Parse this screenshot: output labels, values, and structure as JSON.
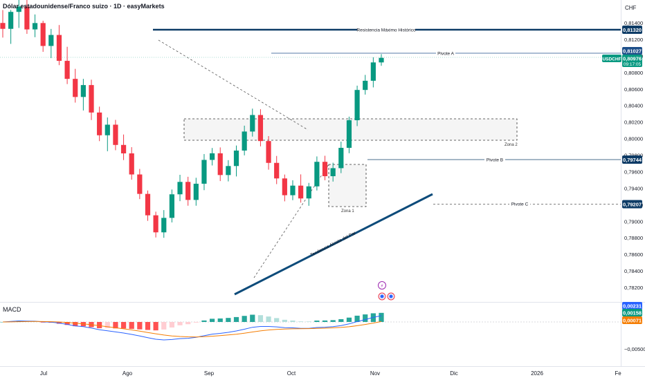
{
  "header": {
    "title": "Dólar estadounidense/Franco suizo · 1D · easyMarkets",
    "currency": "CHF"
  },
  "price_axis": {
    "ticks": [
      "0,81400",
      "0,81200",
      "0,81000",
      "0,80800",
      "0,80600",
      "0,80400",
      "0,80200",
      "0,80000",
      "0,79800",
      "0,79600",
      "0,79400",
      "0,79200",
      "0,79000",
      "0,78800",
      "0,78600",
      "0,78400",
      "0,78200"
    ],
    "tick_values": [
      0.814,
      0.812,
      0.81,
      0.808,
      0.806,
      0.804,
      0.802,
      0.8,
      0.798,
      0.796,
      0.794,
      0.792,
      0.79,
      0.788,
      0.786,
      0.784,
      0.782
    ],
    "badges": {
      "resistencia": {
        "label": "0,81320",
        "value": 0.8132,
        "color": "#0d3b66"
      },
      "pivote_a": {
        "label": "0,81027",
        "value": 0.81027,
        "color": "#1e4f8a"
      },
      "symbol": {
        "name": "USDCHF",
        "price": "0,80976",
        "countdown": "09:17:05",
        "value": 0.80976,
        "color": "#089981"
      },
      "pivote_b": {
        "label": "0,79744",
        "value": 0.79744,
        "color": "#0d3b66"
      },
      "pivote_c": {
        "label": "0,79207",
        "value": 0.79207,
        "color": "#0d3b66"
      }
    }
  },
  "annotations": {
    "resistencia": "Resistencia Máximo Histórico",
    "pivote_a": "Pivote A",
    "pivote_b": "Pivote B",
    "pivote_c": "Pivote C",
    "zona1": "Zona 1",
    "zona2": "Zona 2",
    "tendencia": "Tendencia Alcista del Par"
  },
  "macd": {
    "title": "MACD",
    "ticks": [
      "0,00231",
      "0,00158",
      "0,00071",
      "−0,00500"
    ],
    "tick_colors": [
      "#2962ff",
      "#089981",
      "#f57c00",
      "#131722"
    ],
    "tick_values": [
      0.00231,
      0.00158,
      0.00071,
      -0.005
    ]
  },
  "time_axis": {
    "labels": [
      "Jul",
      "Ago",
      "Sep",
      "Oct",
      "Nov",
      "Dic",
      "2026",
      "Fe"
    ]
  },
  "colors": {
    "up": "#089981",
    "down": "#f23645",
    "trend": "#0d4b7a",
    "macd_line": "#2962ff",
    "signal_line": "#f57c00"
  },
  "chart_data": {
    "type": "candlestick",
    "symbol": "USDCHF",
    "timeframe": "1D",
    "ylim": [
      0.7808,
      0.8148
    ],
    "ohlc": [
      [
        0.81398,
        0.81555,
        0.81221,
        0.81327
      ],
      [
        0.81327,
        0.81555,
        0.81145,
        0.81532
      ],
      [
        0.81532,
        0.81702,
        0.81338,
        0.81597
      ],
      [
        0.81597,
        0.81692,
        0.81266,
        0.8132
      ],
      [
        0.8132,
        0.81501,
        0.81226,
        0.81397
      ],
      [
        0.81397,
        0.81425,
        0.81049,
        0.8112
      ],
      [
        0.8112,
        0.81326,
        0.80973,
        0.81253
      ],
      [
        0.81253,
        0.81373,
        0.80888,
        0.8094
      ],
      [
        0.8094,
        0.8111,
        0.80659,
        0.80722
      ],
      [
        0.80722,
        0.80843,
        0.80435,
        0.80503
      ],
      [
        0.80503,
        0.80722,
        0.8034,
        0.80647
      ],
      [
        0.80647,
        0.80712,
        0.80224,
        0.80315
      ],
      [
        0.80315,
        0.80386,
        0.79969,
        0.8004
      ],
      [
        0.8004,
        0.80255,
        0.79847,
        0.80168
      ],
      [
        0.80168,
        0.80226,
        0.79859,
        0.79923
      ],
      [
        0.79923,
        0.80049,
        0.7974,
        0.79821
      ],
      [
        0.79821,
        0.79896,
        0.79503,
        0.79566
      ],
      [
        0.79566,
        0.79633,
        0.79268,
        0.79331
      ],
      [
        0.79331,
        0.79372,
        0.79005,
        0.79072
      ],
      [
        0.79072,
        0.79116,
        0.78804,
        0.78866
      ],
      [
        0.78866,
        0.79135,
        0.788,
        0.79041
      ],
      [
        0.79041,
        0.79384,
        0.78986,
        0.79326
      ],
      [
        0.79326,
        0.79562,
        0.79243,
        0.79476
      ],
      [
        0.79476,
        0.79538,
        0.79188,
        0.79258
      ],
      [
        0.79258,
        0.79526,
        0.79188,
        0.79454
      ],
      [
        0.79454,
        0.79813,
        0.79376,
        0.79742
      ],
      [
        0.79742,
        0.79886,
        0.79675,
        0.79822
      ],
      [
        0.79822,
        0.79893,
        0.79486,
        0.79559
      ],
      [
        0.79559,
        0.79739,
        0.79482,
        0.79668
      ],
      [
        0.79668,
        0.79916,
        0.79542,
        0.79855
      ],
      [
        0.79855,
        0.80156,
        0.79797,
        0.80085
      ],
      [
        0.80085,
        0.80362,
        0.80024,
        0.80285
      ],
      [
        0.80285,
        0.80355,
        0.79906,
        0.7997
      ],
      [
        0.7997,
        0.8003,
        0.79624,
        0.79706
      ],
      [
        0.79706,
        0.7979,
        0.79449,
        0.79518
      ],
      [
        0.79518,
        0.79565,
        0.79241,
        0.79315
      ],
      [
        0.79315,
        0.79496,
        0.79255,
        0.79431
      ],
      [
        0.79431,
        0.79567,
        0.79225,
        0.79276
      ],
      [
        0.79276,
        0.79464,
        0.79187,
        0.79422
      ],
      [
        0.79422,
        0.79784,
        0.79372,
        0.79719
      ],
      [
        0.79719,
        0.79792,
        0.79496,
        0.79545
      ],
      [
        0.79545,
        0.79708,
        0.7948,
        0.79642
      ],
      [
        0.79642,
        0.79963,
        0.79582,
        0.79888
      ],
      [
        0.79888,
        0.80265,
        0.79823,
        0.80222
      ],
      [
        0.80222,
        0.8064,
        0.80151,
        0.80588
      ],
      [
        0.80588,
        0.8077,
        0.80532,
        0.80699
      ],
      [
        0.80699,
        0.80982,
        0.80619,
        0.80921
      ],
      [
        0.80921,
        0.81021,
        0.8088,
        0.80976
      ]
    ]
  }
}
